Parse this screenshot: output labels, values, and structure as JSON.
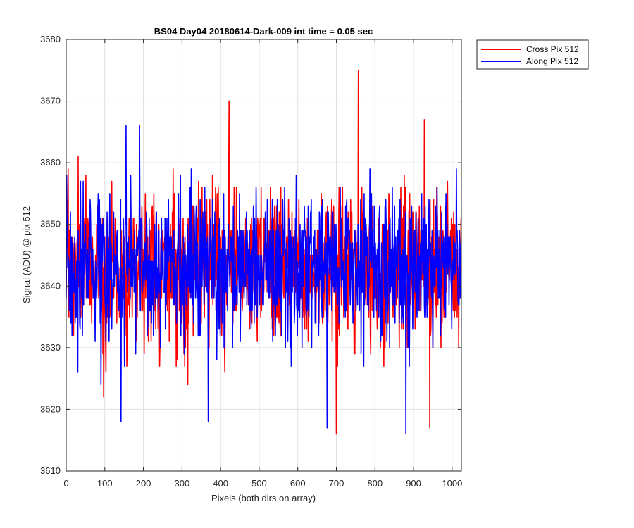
{
  "chart_data": {
    "type": "line",
    "title": "BS04 Day04 20180614-Dark-009 int time = 0.05 sec",
    "xlabel": "Pixels (both dirs on array)",
    "ylabel": "Signal (ADU) @ pix 512",
    "xlim": [
      0,
      1024
    ],
    "ylim": [
      3610,
      3680
    ],
    "x_ticks": [
      "0",
      "100",
      "200",
      "300",
      "400",
      "500",
      "600",
      "700",
      "800",
      "900",
      "1000"
    ],
    "y_ticks": [
      "3610",
      "3620",
      "3630",
      "3640",
      "3650",
      "3660",
      "3670",
      "3680"
    ],
    "grid": true,
    "legend_position": "outside-top-right",
    "series": [
      {
        "name": "Cross Pix 512",
        "color": "#ff0000",
        "mean": 3643,
        "std": 6,
        "n_points": 1024,
        "spikes": [
          [
            5,
            3659
          ],
          [
            31,
            3661
          ],
          [
            97,
            3622
          ],
          [
            422,
            3670
          ],
          [
            700,
            3616
          ],
          [
            757,
            3675
          ],
          [
            928,
            3667
          ],
          [
            942,
            3617
          ]
        ]
      },
      {
        "name": "Along Pix 512",
        "color": "#0000ff",
        "mean": 3643,
        "std": 6,
        "n_points": 1024,
        "spikes": [
          [
            142,
            3618
          ],
          [
            155,
            3666
          ],
          [
            190,
            3666
          ],
          [
            368,
            3618
          ],
          [
            676,
            3617
          ],
          [
            880,
            3616
          ]
        ]
      }
    ]
  }
}
